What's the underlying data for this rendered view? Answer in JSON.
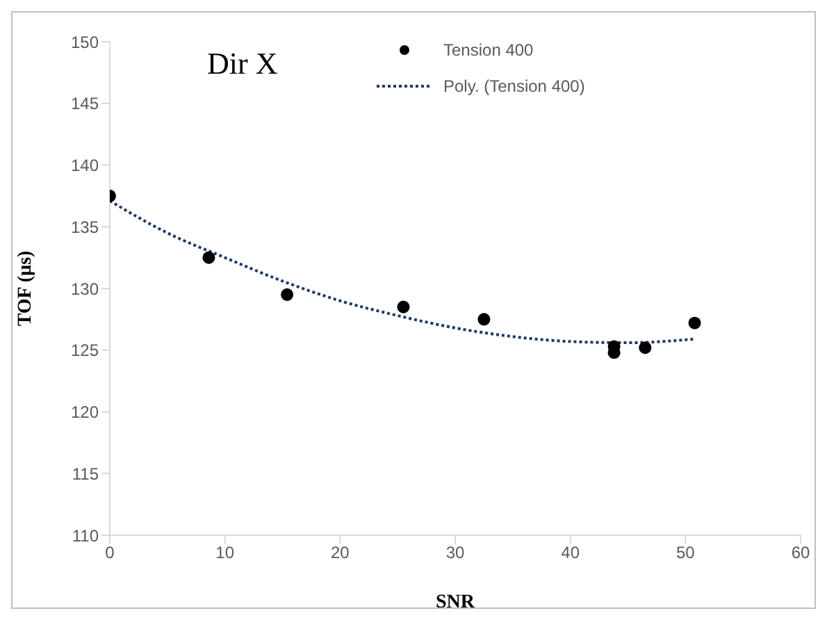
{
  "chart_data": {
    "type": "scatter",
    "title": "Dir X",
    "xlabel": "SNR",
    "ylabel": "TOF (µs)",
    "xlim": [
      0,
      60
    ],
    "xticks": [
      0,
      10,
      20,
      30,
      40,
      50,
      60
    ],
    "ylim": [
      110,
      150
    ],
    "yticks": [
      110,
      115,
      120,
      125,
      130,
      135,
      140,
      145,
      150
    ],
    "legend": "top",
    "series": [
      {
        "name": "Tension 400",
        "marker": "circle",
        "color": "#000000",
        "x": [
          0,
          8.6,
          15.4,
          25.5,
          32.5,
          43.8,
          43.8,
          46.5,
          50.8
        ],
        "values": [
          137.5,
          132.5,
          129.5,
          128.5,
          127.5,
          124.8,
          125.3,
          125.2,
          127.2
        ]
      },
      {
        "name": "Poly. (Tension 400)",
        "type": "line",
        "color": "#1f3864",
        "line_style": "dotted",
        "x": [
          0,
          5,
          10,
          15,
          20,
          25,
          30,
          35,
          40,
          45,
          50.8
        ],
        "values": [
          137.1,
          134.5,
          132.5,
          130.6,
          129.0,
          127.8,
          126.8,
          126.1,
          125.7,
          125.6,
          125.9
        ]
      }
    ]
  }
}
